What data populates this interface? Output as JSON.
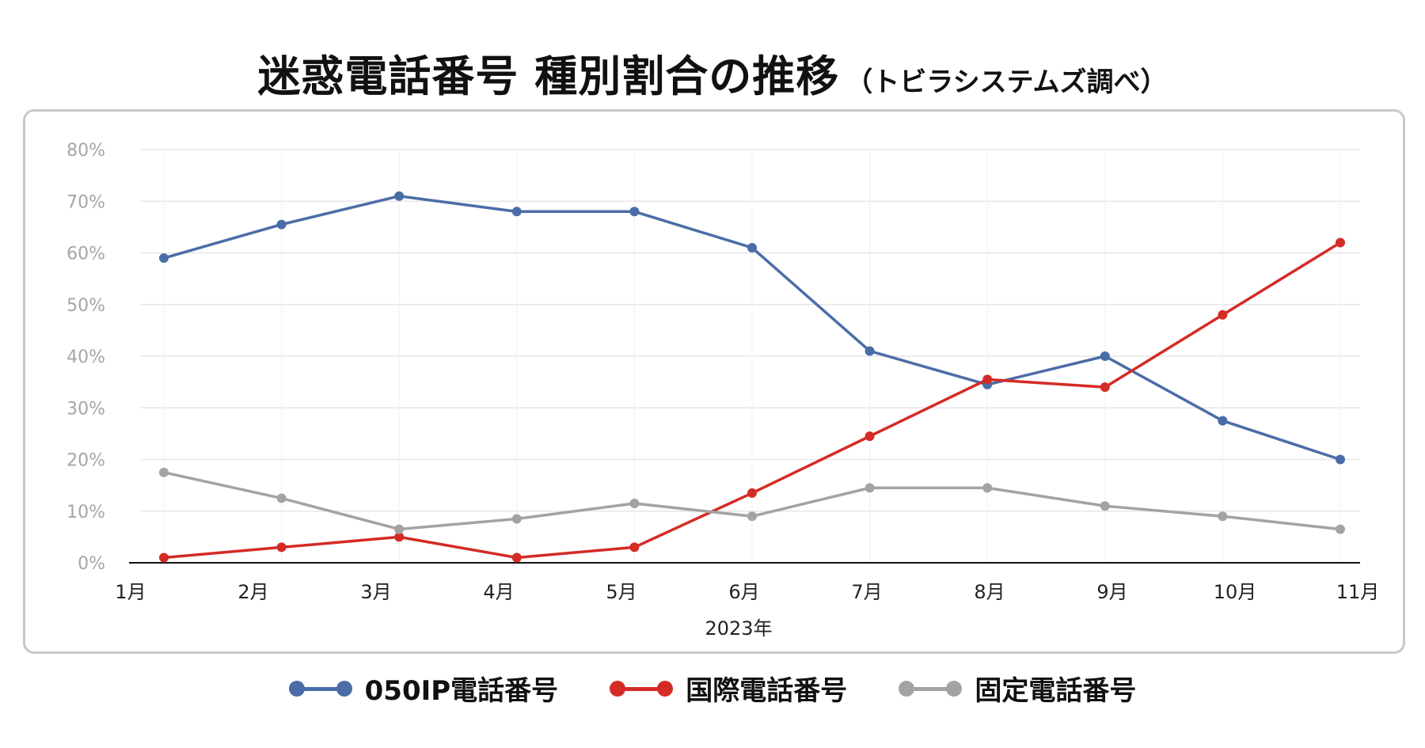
{
  "title": {
    "main": "迷惑電話番号 種別割合の推移",
    "sub": "（トビラシステムズ調べ）"
  },
  "chart_data": {
    "type": "line",
    "title": "迷惑電話番号 種別割合の推移",
    "subtitle": "（トビラシステムズ調べ）",
    "categories": [
      "1月",
      "2月",
      "3月",
      "4月",
      "5月",
      "6月",
      "7月",
      "8月",
      "9月",
      "10月",
      "11月"
    ],
    "x_tick_labels": [
      "1月",
      "2月",
      "3月",
      "4月",
      "5月",
      "6月",
      "7月",
      "8月",
      "9月",
      "10月",
      "11月"
    ],
    "y_tick_labels": [
      "0%",
      "10%",
      "20%",
      "30%",
      "40%",
      "50%",
      "60%",
      "70%",
      "80%"
    ],
    "xlabel": "2023年",
    "ylabel": "",
    "ylim": [
      0,
      80
    ],
    "grid": true,
    "legend_position": "bottom",
    "series": [
      {
        "name": "050IP電話番号",
        "color": "#4a6da7",
        "values": [
          59,
          65.5,
          71,
          68,
          68,
          61,
          41,
          34.5,
          40,
          27.5,
          20
        ]
      },
      {
        "name": "国際電話番号",
        "color": "#d42b26",
        "values": [
          1,
          3,
          5,
          1,
          3,
          13.5,
          24.5,
          35.5,
          34,
          48,
          62
        ]
      },
      {
        "name": "固定電話番号",
        "color": "#a3a3a3",
        "values": [
          17.5,
          12.5,
          6.5,
          8.5,
          11.5,
          9,
          14.5,
          14.5,
          11,
          9,
          6.5
        ]
      }
    ]
  }
}
